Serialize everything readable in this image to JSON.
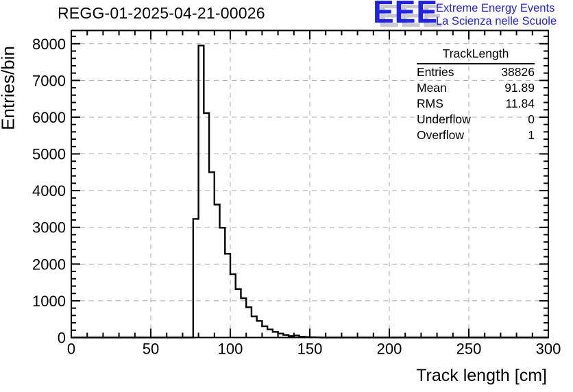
{
  "page": {
    "title": "REGG-01-2025-04-21-00026"
  },
  "logo": {
    "acronym": "EEE",
    "line1": "Extreme Energy Events",
    "line2": "La Scienza nelle Scuole",
    "color": "#2222ee",
    "shadow_color": "#c9c9c9"
  },
  "stats_box": {
    "header": "TrackLength",
    "rows": [
      {
        "label": "Entries",
        "value": "38826"
      },
      {
        "label": "Mean",
        "value": "91.89"
      },
      {
        "label": "RMS",
        "value": "11.84"
      },
      {
        "label": "Underflow",
        "value": "0"
      },
      {
        "label": "Overflow",
        "value": "1"
      }
    ]
  },
  "chart_data": {
    "type": "bar",
    "subtype": "step-histogram",
    "title": "REGG-01-2025-04-21-00026",
    "xlabel": "Track length [cm]",
    "ylabel": "Entries/bin",
    "xlim": [
      0,
      300
    ],
    "ylim": [
      0,
      8360
    ],
    "x_major_ticks": [
      0,
      50,
      100,
      150,
      200,
      250,
      300
    ],
    "x_minor_step": 10,
    "y_major_ticks": [
      0,
      1000,
      2000,
      3000,
      4000,
      5000,
      6000,
      7000,
      8000
    ],
    "y_minor_step": 200,
    "grid": "dashed-gray-on-major-ticks",
    "legend_position": "none",
    "bin_width": 3.3333,
    "bins_nonzero": [
      [
        76.667,
        3230
      ],
      [
        80.0,
        7950
      ],
      [
        83.333,
        6110
      ],
      [
        86.667,
        4500
      ],
      [
        90.0,
        3620
      ],
      [
        93.333,
        2990
      ],
      [
        96.667,
        2280
      ],
      [
        100.0,
        1725
      ],
      [
        103.333,
        1320
      ],
      [
        106.667,
        1070
      ],
      [
        110.0,
        824
      ],
      [
        113.333,
        574
      ],
      [
        116.667,
        451
      ],
      [
        120.0,
        307
      ],
      [
        123.333,
        220
      ],
      [
        126.667,
        153
      ],
      [
        130.0,
        108
      ],
      [
        133.333,
        71
      ],
      [
        136.667,
        40
      ],
      [
        140.0,
        55
      ],
      [
        143.333,
        25
      ],
      [
        146.667,
        15
      ],
      [
        150.0,
        9
      ],
      [
        153.333,
        4
      ]
    ],
    "bins_elsewhere": 0
  },
  "colors": {
    "line": "#000000",
    "grid": "#a8a8a8",
    "background": "#ffffff"
  }
}
